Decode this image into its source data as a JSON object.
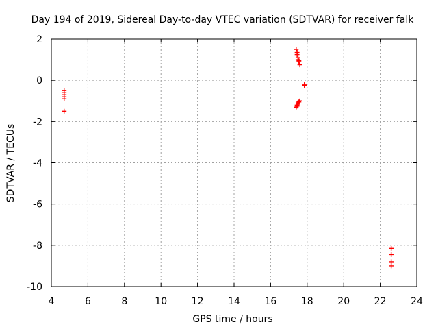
{
  "chart_data": {
    "type": "scatter",
    "title": "Day 194 of 2019, Sidereal Day-to-day VTEC variation (SDTVAR) for receiver falk",
    "xlabel": "GPS time / hours",
    "ylabel": "SDTVAR / TECUs",
    "xlim": [
      4,
      24
    ],
    "ylim": [
      -10,
      2
    ],
    "x_ticks": [
      4,
      6,
      8,
      10,
      12,
      14,
      16,
      18,
      20,
      22,
      24
    ],
    "y_ticks": [
      -10,
      -8,
      -6,
      -4,
      -2,
      0,
      2
    ],
    "grid": true,
    "marker": "+",
    "series": [
      {
        "name": "SDTVAR",
        "color": "#ff0000",
        "points": [
          [
            4.7,
            -0.5
          ],
          [
            4.7,
            -0.6
          ],
          [
            4.7,
            -0.7
          ],
          [
            4.7,
            -0.8
          ],
          [
            4.7,
            -0.9
          ],
          [
            4.7,
            -1.5
          ],
          [
            17.4,
            1.5
          ],
          [
            17.45,
            1.35
          ],
          [
            17.45,
            1.25
          ],
          [
            17.5,
            1.1
          ],
          [
            17.5,
            1.0
          ],
          [
            17.55,
            0.95
          ],
          [
            17.55,
            0.9
          ],
          [
            17.6,
            0.75
          ],
          [
            17.85,
            -0.2
          ],
          [
            17.85,
            -0.25
          ],
          [
            17.6,
            -1.0
          ],
          [
            17.55,
            -1.05
          ],
          [
            17.5,
            -1.1
          ],
          [
            17.5,
            -1.15
          ],
          [
            17.45,
            -1.2
          ],
          [
            17.45,
            -1.25
          ],
          [
            17.4,
            -1.3
          ],
          [
            22.6,
            -8.15
          ],
          [
            22.6,
            -8.45
          ],
          [
            22.6,
            -8.8
          ],
          [
            22.6,
            -9.0
          ]
        ]
      }
    ]
  }
}
